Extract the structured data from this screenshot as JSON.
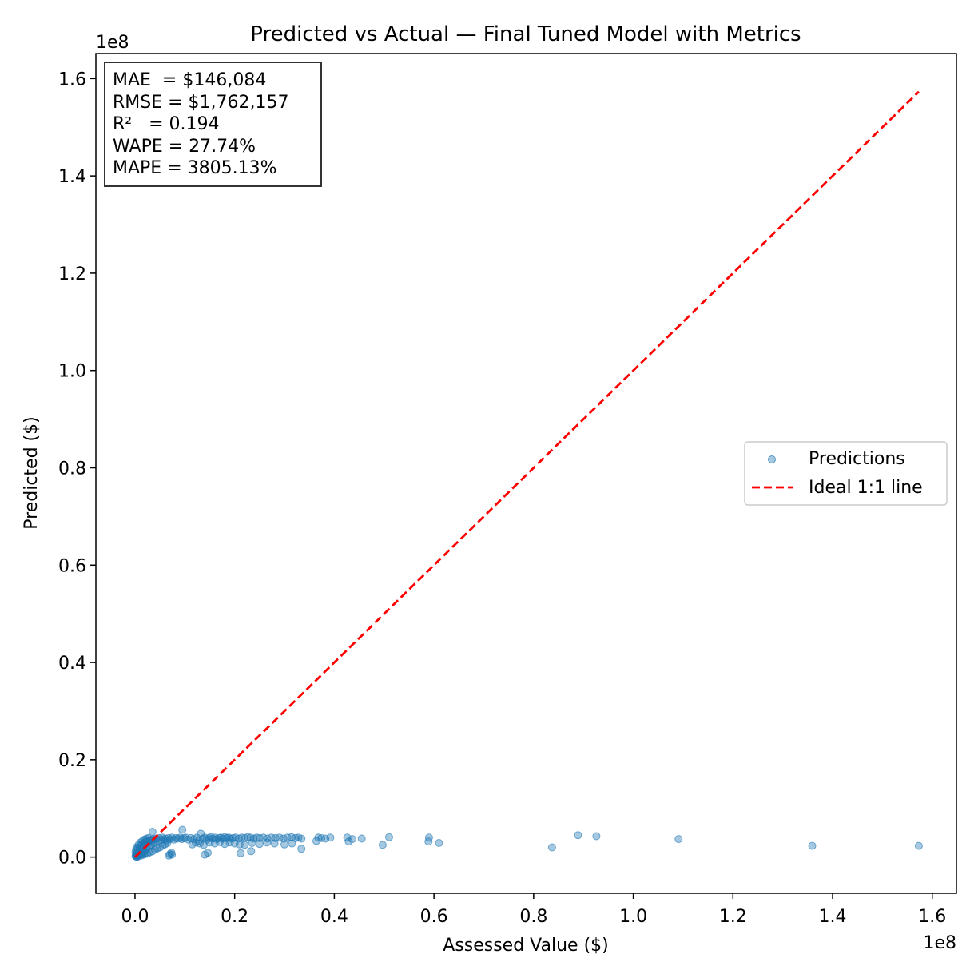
{
  "chart_data": {
    "type": "scatter",
    "title": "Predicted vs Actual — Final Tuned Model with Metrics",
    "xlabel": "Assessed Value ($)",
    "ylabel": "Predicted ($)",
    "x_offset_label": "1e8",
    "y_offset_label": "1e8",
    "xlim": [
      -0.0785,
      1.6485
    ],
    "ylim": [
      -0.0745,
      1.6515
    ],
    "x_ticks": [
      {
        "value": 0.0,
        "label": "0.0"
      },
      {
        "value": 0.2,
        "label": "0.2"
      },
      {
        "value": 0.4,
        "label": "0.4"
      },
      {
        "value": 0.6,
        "label": "0.6"
      },
      {
        "value": 0.8,
        "label": "0.8"
      },
      {
        "value": 1.0,
        "label": "1.0"
      },
      {
        "value": 1.2,
        "label": "1.2"
      },
      {
        "value": 1.4,
        "label": "1.4"
      },
      {
        "value": 1.6,
        "label": "1.6"
      }
    ],
    "y_ticks": [
      {
        "value": 0.0,
        "label": "0.0"
      },
      {
        "value": 0.2,
        "label": "0.2"
      },
      {
        "value": 0.4,
        "label": "0.4"
      },
      {
        "value": 0.6,
        "label": "0.6"
      },
      {
        "value": 0.8,
        "label": "0.8"
      },
      {
        "value": 1.0,
        "label": "1.0"
      },
      {
        "value": 1.2,
        "label": "1.2"
      },
      {
        "value": 1.4,
        "label": "1.4"
      },
      {
        "value": 1.6,
        "label": "1.6"
      }
    ],
    "grid": false,
    "legend_position": "center-right",
    "metrics_box": [
      "MAE  = $146,084",
      "RMSE = $1,762,157",
      "R²   = 0.194",
      "WAPE = 27.74%",
      "MAPE = 3805.13%"
    ],
    "series": [
      {
        "name": "Predictions",
        "kind": "scatter",
        "color": "#1f77b4",
        "points": [
          [
            0.001,
            0.002
          ],
          [
            0.002,
            0.004
          ],
          [
            0.003,
            0.001
          ],
          [
            0.004,
            0.008
          ],
          [
            0.005,
            0.003
          ],
          [
            0.006,
            0.012
          ],
          [
            0.008,
            0.006
          ],
          [
            0.01,
            0.015
          ],
          [
            0.012,
            0.009
          ],
          [
            0.014,
            0.02
          ],
          [
            0.016,
            0.011
          ],
          [
            0.018,
            0.024
          ],
          [
            0.02,
            0.014
          ],
          [
            0.022,
            0.028
          ],
          [
            0.024,
            0.018
          ],
          [
            0.026,
            0.031
          ],
          [
            0.028,
            0.022
          ],
          [
            0.03,
            0.034
          ],
          [
            0.032,
            0.025
          ],
          [
            0.034,
            0.036
          ],
          [
            0.036,
            0.029
          ],
          [
            0.038,
            0.037
          ],
          [
            0.04,
            0.031
          ],
          [
            0.043,
            0.038
          ],
          [
            0.046,
            0.033
          ],
          [
            0.049,
            0.039
          ],
          [
            0.052,
            0.035
          ],
          [
            0.055,
            0.04
          ],
          [
            0.058,
            0.036
          ],
          [
            0.061,
            0.038
          ],
          [
            0.064,
            0.034
          ],
          [
            0.067,
            0.039
          ],
          [
            0.07,
            0.037
          ],
          [
            0.074,
            0.04
          ],
          [
            0.078,
            0.036
          ],
          [
            0.082,
            0.039
          ],
          [
            0.086,
            0.038
          ],
          [
            0.09,
            0.04
          ],
          [
            0.094,
            0.037
          ],
          [
            0.098,
            0.039
          ],
          [
            0.001,
            0.01
          ],
          [
            0.002,
            0.015
          ],
          [
            0.003,
            0.02
          ],
          [
            0.005,
            0.018
          ],
          [
            0.007,
            0.025
          ],
          [
            0.009,
            0.022
          ],
          [
            0.011,
            0.03
          ],
          [
            0.013,
            0.026
          ],
          [
            0.015,
            0.033
          ],
          [
            0.017,
            0.029
          ],
          [
            0.019,
            0.036
          ],
          [
            0.021,
            0.031
          ],
          [
            0.023,
            0.038
          ],
          [
            0.025,
            0.033
          ],
          [
            0.027,
            0.039
          ],
          [
            0.029,
            0.035
          ],
          [
            0.004,
            0.0
          ],
          [
            0.006,
            0.002
          ],
          [
            0.009,
            0.004
          ],
          [
            0.012,
            0.003
          ],
          [
            0.015,
            0.006
          ],
          [
            0.018,
            0.005
          ],
          [
            0.021,
            0.008
          ],
          [
            0.025,
            0.007
          ],
          [
            0.03,
            0.01
          ],
          [
            0.035,
            0.012
          ],
          [
            0.04,
            0.015
          ],
          [
            0.045,
            0.018
          ],
          [
            0.05,
            0.02
          ],
          [
            0.055,
            0.023
          ],
          [
            0.06,
            0.026
          ],
          [
            0.065,
            0.029
          ],
          [
            0.07,
            0.006
          ],
          [
            0.073,
            0.009
          ],
          [
            0.035,
            0.052
          ],
          [
            0.095,
            0.056
          ],
          [
            0.102,
            0.04
          ],
          [
            0.107,
            0.036
          ],
          [
            0.112,
            0.039
          ],
          [
            0.118,
            0.037
          ],
          [
            0.124,
            0.04
          ],
          [
            0.128,
            0.033
          ],
          [
            0.132,
            0.048
          ],
          [
            0.136,
            0.038
          ],
          [
            0.14,
            0.04
          ],
          [
            0.144,
            0.036
          ],
          [
            0.148,
            0.039
          ],
          [
            0.152,
            0.041
          ],
          [
            0.156,
            0.038
          ],
          [
            0.16,
            0.04
          ],
          [
            0.164,
            0.037
          ],
          [
            0.168,
            0.039
          ],
          [
            0.172,
            0.04
          ],
          [
            0.176,
            0.038
          ],
          [
            0.18,
            0.041
          ],
          [
            0.184,
            0.039
          ],
          [
            0.188,
            0.04
          ],
          [
            0.192,
            0.038
          ],
          [
            0.197,
            0.039
          ],
          [
            0.202,
            0.04
          ],
          [
            0.208,
            0.038
          ],
          [
            0.214,
            0.04
          ],
          [
            0.22,
            0.039
          ],
          [
            0.226,
            0.041
          ],
          [
            0.232,
            0.04
          ],
          [
            0.238,
            0.038
          ],
          [
            0.244,
            0.04
          ],
          [
            0.25,
            0.039
          ],
          [
            0.258,
            0.04
          ],
          [
            0.266,
            0.038
          ],
          [
            0.274,
            0.04
          ],
          [
            0.282,
            0.039
          ],
          [
            0.29,
            0.04
          ],
          [
            0.298,
            0.038
          ],
          [
            0.306,
            0.04
          ],
          [
            0.314,
            0.041
          ],
          [
            0.322,
            0.039
          ],
          [
            0.328,
            0.04
          ],
          [
            0.334,
            0.038
          ],
          [
            0.115,
            0.026
          ],
          [
            0.122,
            0.03
          ],
          [
            0.13,
            0.028
          ],
          [
            0.138,
            0.025
          ],
          [
            0.15,
            0.03
          ],
          [
            0.16,
            0.028
          ],
          [
            0.17,
            0.031
          ],
          [
            0.18,
            0.027
          ],
          [
            0.19,
            0.03
          ],
          [
            0.2,
            0.028
          ],
          [
            0.21,
            0.026
          ],
          [
            0.22,
            0.025
          ],
          [
            0.235,
            0.029
          ],
          [
            0.25,
            0.027
          ],
          [
            0.265,
            0.03
          ],
          [
            0.28,
            0.028
          ],
          [
            0.3,
            0.026
          ],
          [
            0.315,
            0.028
          ],
          [
            0.14,
            0.005
          ],
          [
            0.146,
            0.009
          ],
          [
            0.212,
            0.008
          ],
          [
            0.233,
            0.012
          ],
          [
            0.334,
            0.017
          ],
          [
            0.068,
            0.003
          ],
          [
            0.074,
            0.005
          ],
          [
            0.364,
            0.033
          ],
          [
            0.368,
            0.04
          ],
          [
            0.374,
            0.039
          ],
          [
            0.382,
            0.038
          ],
          [
            0.392,
            0.04
          ],
          [
            0.426,
            0.04
          ],
          [
            0.429,
            0.032
          ],
          [
            0.436,
            0.037
          ],
          [
            0.455,
            0.038
          ],
          [
            0.497,
            0.025
          ],
          [
            0.51,
            0.041
          ],
          [
            0.589,
            0.032
          ],
          [
            0.59,
            0.04
          ],
          [
            0.61,
            0.029
          ],
          [
            0.837,
            0.02
          ],
          [
            0.889,
            0.045
          ],
          [
            0.926,
            0.043
          ],
          [
            1.091,
            0.037
          ],
          [
            1.359,
            0.023
          ],
          [
            1.573,
            0.023
          ]
        ]
      },
      {
        "name": "Ideal 1:1 line",
        "kind": "line",
        "color": "#ff0000",
        "points": [
          [
            0.0,
            0.0
          ],
          [
            1.573,
            1.573
          ]
        ]
      }
    ]
  }
}
